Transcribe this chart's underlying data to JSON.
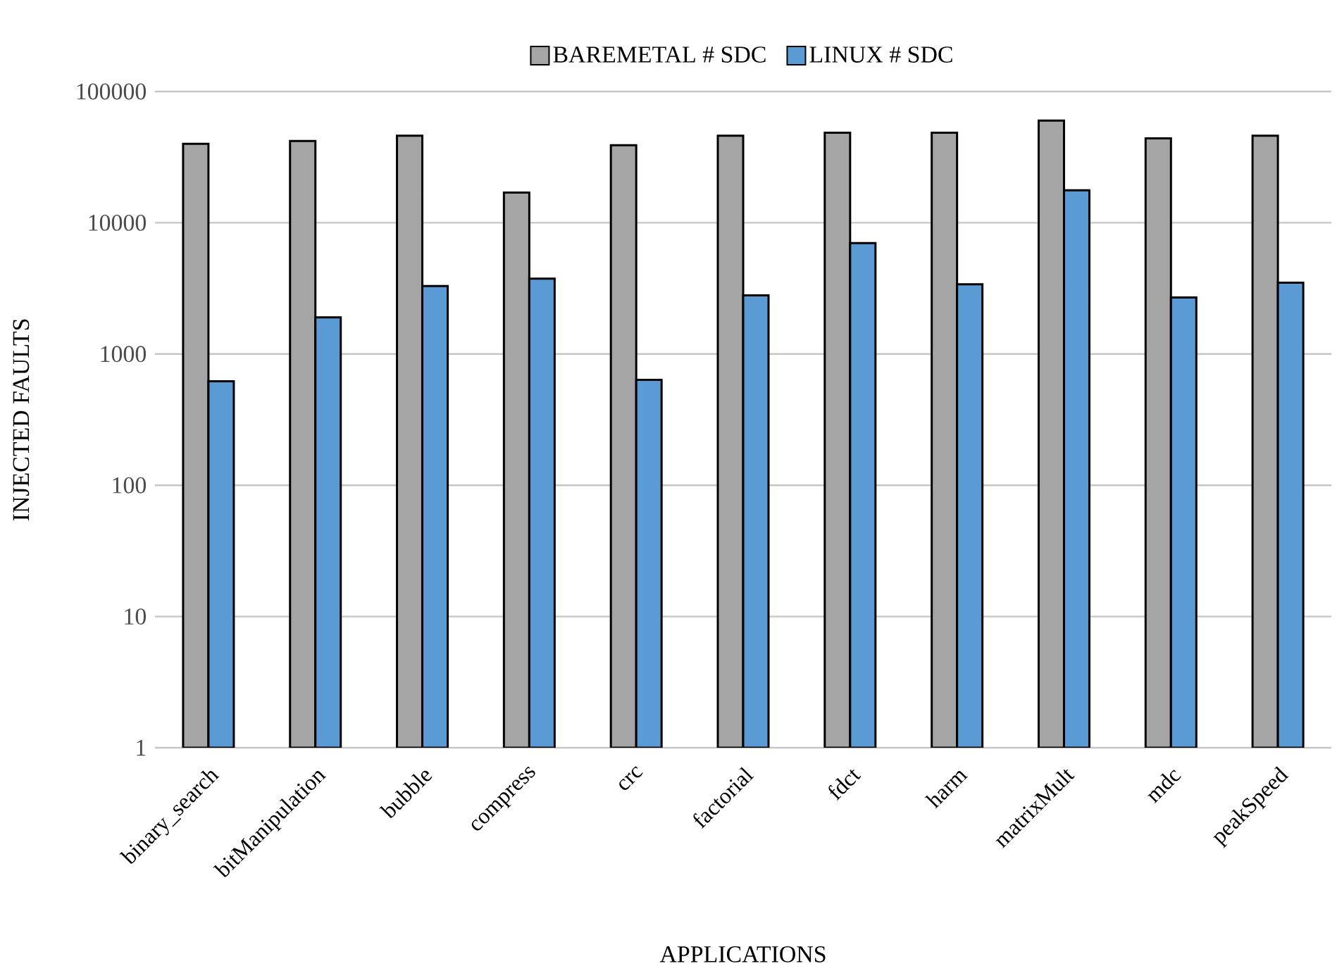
{
  "chart_data": {
    "type": "bar",
    "xlabel": "APPLICATIONS",
    "ylabel": "INJECTED FAULTS",
    "categories": [
      "binary_search",
      "bitManipulation",
      "bubble",
      "compress",
      "crc",
      "factorial",
      "fdct",
      "harm",
      "matrixMult",
      "mdc",
      "peakSpeed"
    ],
    "series": [
      {
        "name": "BAREMETAL # SDC",
        "color": "#a5a5a5",
        "values": [
          40000,
          42000,
          46000,
          17000,
          39000,
          46000,
          48500,
          48500,
          60000,
          44000,
          46000
        ]
      },
      {
        "name": "LINUX # SDC",
        "color": "#5b9bd5",
        "values": [
          620,
          1900,
          3300,
          3750,
          635,
          2800,
          7000,
          3400,
          17700,
          2700,
          3500
        ]
      }
    ],
    "log": "y",
    "ylim": [
      1,
      100000
    ],
    "yticks": [
      1,
      10,
      100,
      1000,
      10000,
      100000
    ],
    "grid": "y",
    "legend": "top"
  }
}
